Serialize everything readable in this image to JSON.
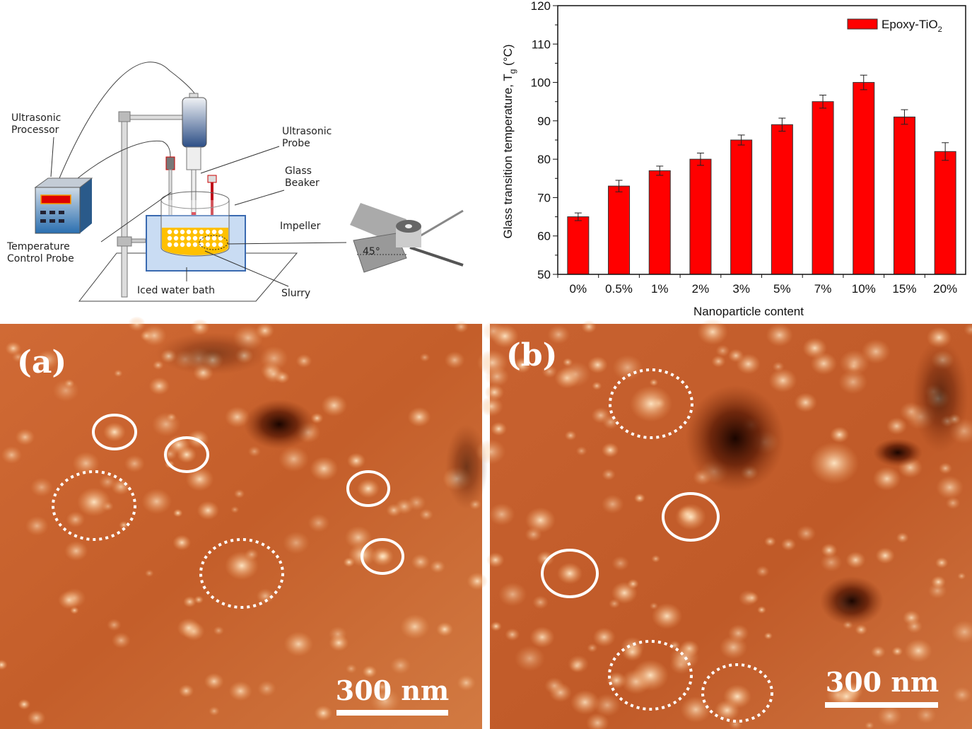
{
  "diagram": {
    "labels": {
      "processor_l1": "Ultrasonic",
      "processor_l2": "Processor",
      "probe_l1": "Ultrasonic",
      "probe_l2": "Probe",
      "beaker_l1": "Glass",
      "beaker_l2": "Beaker",
      "impeller": "Impeller",
      "temp_l1": "Temperature",
      "temp_l2": "Control Probe",
      "bath": "Iced water bath",
      "slurry": "Slurry",
      "angle": "45°"
    },
    "colors": {
      "slurry": "#ffc000",
      "water": "#c9dcf3",
      "probe_red": "#c0101a",
      "processor_blue": "#2a6fb0"
    }
  },
  "chart_data": {
    "type": "bar",
    "title": "",
    "xlabel": "Nanoparticle content",
    "ylabel_main": "Glass transition temperature, T",
    "ylabel_sub": "g",
    "ylabel_unit": " (°C)",
    "categories": [
      "0%",
      "0.5%",
      "1%",
      "2%",
      "3%",
      "5%",
      "7%",
      "10%",
      "15%",
      "20%"
    ],
    "series": [
      {
        "name": "Epoxy-TiO2",
        "name_main": "Epoxy-TiO",
        "name_sub": "2",
        "values": [
          65,
          73,
          77,
          80,
          85,
          89,
          95,
          100,
          91,
          82
        ],
        "errors": [
          1.0,
          1.5,
          1.2,
          1.6,
          1.3,
          1.7,
          1.7,
          1.9,
          1.9,
          2.3
        ],
        "color": "#ff0000"
      }
    ],
    "ylim": [
      50,
      120
    ],
    "yticks": [
      50,
      60,
      70,
      80,
      90,
      100,
      110,
      120
    ],
    "grid": false,
    "legend": "top-right"
  },
  "afm": {
    "panel_a": {
      "label": "(a)",
      "scale": "300 nm"
    },
    "panel_b": {
      "label": "(b)",
      "scale": "300 nm"
    },
    "colors": {
      "base": "#c8602a",
      "highlight": "#ffe2b8",
      "dark": "#2a0a00"
    }
  }
}
